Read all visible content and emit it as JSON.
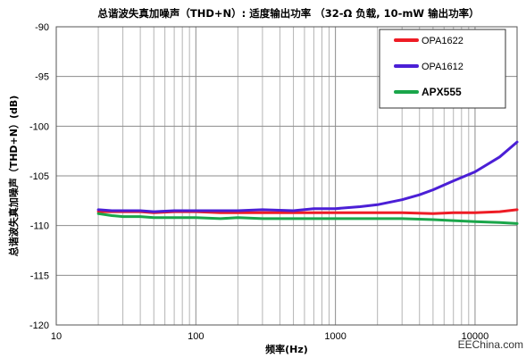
{
  "chart_data": {
    "type": "line",
    "title": "总谐波失真加噪声（THD+N）: 适度输出功率 （32-Ω 负载, 10-mW 输出功率）",
    "xlabel": "频率(Hz)",
    "ylabel": "总谐波失真加噪声（THD+N）(dB)",
    "xscale": "log",
    "xlim": [
      10,
      20000
    ],
    "ylim": [
      -120,
      -90
    ],
    "x_ticks": [
      10,
      100,
      1000,
      10000
    ],
    "x_tick_labels": [
      "10",
      "100",
      "1000",
      "10000"
    ],
    "y_ticks": [
      -90,
      -95,
      -100,
      -105,
      -110,
      -115,
      -120
    ],
    "y_tick_labels": [
      "-90",
      "-95",
      "-100",
      "-105",
      "-110",
      "-115",
      "-120"
    ],
    "grid": true,
    "legend_position": "top-right",
    "series": [
      {
        "name": "OPA1622",
        "color": "#ee1c25",
        "points": [
          [
            20,
            -108.6
          ],
          [
            25,
            -108.6
          ],
          [
            30,
            -108.6
          ],
          [
            40,
            -108.6
          ],
          [
            50,
            -108.7
          ],
          [
            70,
            -108.6
          ],
          [
            100,
            -108.6
          ],
          [
            150,
            -108.7
          ],
          [
            200,
            -108.7
          ],
          [
            300,
            -108.7
          ],
          [
            500,
            -108.7
          ],
          [
            700,
            -108.7
          ],
          [
            1000,
            -108.7
          ],
          [
            1500,
            -108.7
          ],
          [
            2000,
            -108.7
          ],
          [
            3000,
            -108.7
          ],
          [
            5000,
            -108.8
          ],
          [
            7000,
            -108.7
          ],
          [
            10000,
            -108.7
          ],
          [
            15000,
            -108.6
          ],
          [
            20000,
            -108.4
          ]
        ]
      },
      {
        "name": "OPA1612",
        "color": "#4b1fd6",
        "points": [
          [
            20,
            -108.4
          ],
          [
            25,
            -108.5
          ],
          [
            30,
            -108.5
          ],
          [
            40,
            -108.5
          ],
          [
            50,
            -108.6
          ],
          [
            70,
            -108.5
          ],
          [
            100,
            -108.5
          ],
          [
            150,
            -108.5
          ],
          [
            200,
            -108.5
          ],
          [
            300,
            -108.4
          ],
          [
            500,
            -108.5
          ],
          [
            700,
            -108.3
          ],
          [
            1000,
            -108.3
          ],
          [
            1500,
            -108.1
          ],
          [
            2000,
            -107.9
          ],
          [
            3000,
            -107.4
          ],
          [
            4000,
            -106.9
          ],
          [
            5000,
            -106.4
          ],
          [
            7000,
            -105.5
          ],
          [
            10000,
            -104.6
          ],
          [
            15000,
            -103.1
          ],
          [
            20000,
            -101.6
          ]
        ]
      },
      {
        "name": "APX555",
        "color": "#1aa64a",
        "points": [
          [
            20,
            -108.8
          ],
          [
            25,
            -109.0
          ],
          [
            30,
            -109.1
          ],
          [
            40,
            -109.1
          ],
          [
            50,
            -109.2
          ],
          [
            70,
            -109.2
          ],
          [
            100,
            -109.2
          ],
          [
            150,
            -109.3
          ],
          [
            200,
            -109.2
          ],
          [
            300,
            -109.3
          ],
          [
            500,
            -109.3
          ],
          [
            700,
            -109.3
          ],
          [
            1000,
            -109.3
          ],
          [
            1500,
            -109.3
          ],
          [
            2000,
            -109.3
          ],
          [
            3000,
            -109.3
          ],
          [
            5000,
            -109.4
          ],
          [
            7000,
            -109.5
          ],
          [
            10000,
            -109.6
          ],
          [
            15000,
            -109.7
          ],
          [
            20000,
            -109.8
          ]
        ]
      }
    ]
  },
  "watermark": "EEChina.com"
}
